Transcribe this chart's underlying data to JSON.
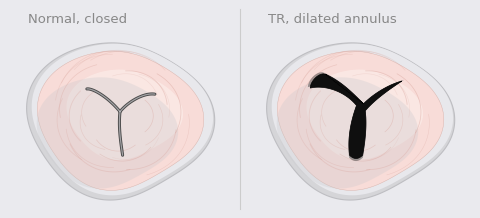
{
  "bg_color": "#eaeaee",
  "title1": "Normal, closed",
  "title2": "TR, dilated annulus",
  "title_color": "#888888",
  "title_fontsize": 9.5,
  "fig_width": 4.8,
  "fig_height": 2.18,
  "outer_color": "#d0d0d4",
  "outer_edge": "#c0c0c4",
  "inner_pink": "#f5d8d2",
  "inner_pink_center": "#faf0ee",
  "stripe_color": "#e8b8b0",
  "closed_line_color": "#606060",
  "divider_color": "#cccccc"
}
